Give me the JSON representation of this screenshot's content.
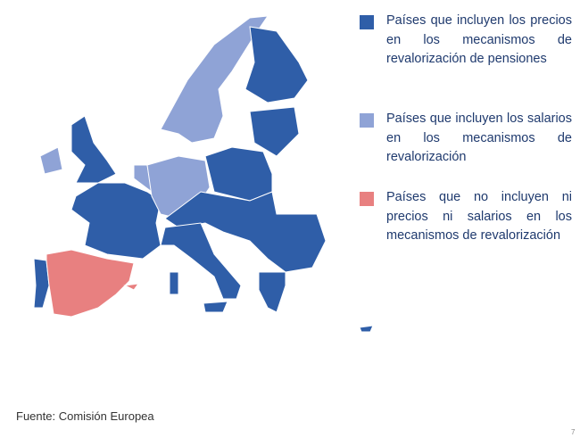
{
  "legend": [
    {
      "color": "#2f5ea8",
      "label": "Países que incluyen los precios en los mecanismos de revalorización de pensiones"
    },
    {
      "color": "#8fa3d6",
      "label": "Países que incluyen los salarios en los mecanismos de revalorización"
    },
    {
      "color": "#e88080",
      "label": "Países que no incluyen ni precios ni salarios en los mecanismos de revalorización"
    }
  ],
  "source": "Fuente: Comisión Europea",
  "page_number": "7"
}
